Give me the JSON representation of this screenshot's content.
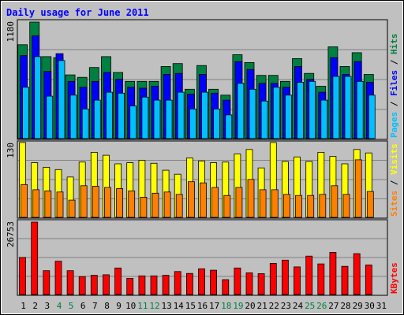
{
  "chart_data": {
    "type": "bar",
    "title": "Daily usage for June 2011",
    "categories": [
      "1",
      "2",
      "3",
      "4",
      "5",
      "6",
      "7",
      "8",
      "9",
      "10",
      "11",
      "12",
      "13",
      "14",
      "15",
      "16",
      "17",
      "18",
      "19",
      "20",
      "21",
      "22",
      "23",
      "24",
      "25",
      "26",
      "27",
      "28",
      "29",
      "30",
      "31"
    ],
    "weekend_days": [
      "4",
      "5",
      "11",
      "12",
      "18",
      "19",
      "25",
      "26"
    ],
    "panels": [
      {
        "id": "hits-files-pages",
        "ymax_label": "1180",
        "ylim": [
          0,
          1180
        ],
        "legend": [
          "Pages",
          "Files",
          "Hits"
        ],
        "series": [
          {
            "name": "Hits",
            "color": "#008040",
            "values": [
              950,
              1180,
              830,
              820,
              645,
              620,
              720,
              830,
              670,
              580,
              580,
              580,
              730,
              760,
              500,
              740,
              500,
              440,
              850,
              770,
              640,
              640,
              580,
              810,
              660,
              530,
              930,
              730,
              870,
              650,
              0
            ]
          },
          {
            "name": "Files",
            "color": "#0000ff",
            "values": [
              840,
              1040,
              680,
              860,
              580,
              520,
              580,
              670,
              600,
              520,
              510,
              530,
              650,
              660,
              450,
              650,
              460,
              390,
              780,
              700,
              560,
              560,
              520,
              730,
              600,
              470,
              820,
              650,
              780,
              570,
              0
            ]
          },
          {
            "name": "Pages",
            "color": "#00c0ff",
            "values": [
              520,
              830,
              430,
              790,
              440,
              300,
              390,
              470,
              460,
              330,
              420,
              390,
              390,
              470,
              300,
              470,
              300,
              240,
              560,
              500,
              380,
              520,
              440,
              570,
              580,
              390,
              630,
              630,
              580,
              440,
              0
            ]
          }
        ]
      },
      {
        "id": "visits-sites",
        "ymax_label": "130",
        "ylim": [
          0,
          130
        ],
        "legend": [
          "Sites",
          "Visits"
        ],
        "series": [
          {
            "name": "Visits",
            "color": "#ffff00",
            "values": [
              130,
              95,
              87,
              83,
              70,
              96,
              113,
              108,
              93,
              95,
              99,
              94,
              82,
              75,
              103,
              98,
              95,
              96,
              110,
              118,
              86,
              130,
              97,
              105,
              97,
              113,
              106,
              93,
              118,
              112,
              0
            ]
          },
          {
            "name": "Sites",
            "color": "#ff8000",
            "values": [
              57,
              48,
              46,
              44,
              30,
              55,
              54,
              52,
              50,
              46,
              35,
              42,
              44,
              40,
              62,
              60,
              52,
              38,
              52,
              66,
              48,
              48,
              40,
              38,
              38,
              40,
              55,
              40,
              100,
              45,
              0
            ]
          }
        ]
      },
      {
        "id": "kbytes",
        "ymax_label": "26753",
        "ylim": [
          0,
          26753
        ],
        "legend": [
          "KBytes"
        ],
        "series": [
          {
            "name": "KBytes",
            "color": "#ff0000",
            "values": [
              13700,
              26753,
              8800,
              12300,
              8800,
              6600,
              7100,
              7300,
              9800,
              6000,
              6900,
              6900,
              7100,
              8500,
              7800,
              9500,
              9000,
              5500,
              9800,
              8000,
              7700,
              11500,
              12700,
              10200,
              14200,
              11300,
              15600,
              10400,
              15100,
              10900,
              0
            ]
          }
        ]
      }
    ]
  }
}
